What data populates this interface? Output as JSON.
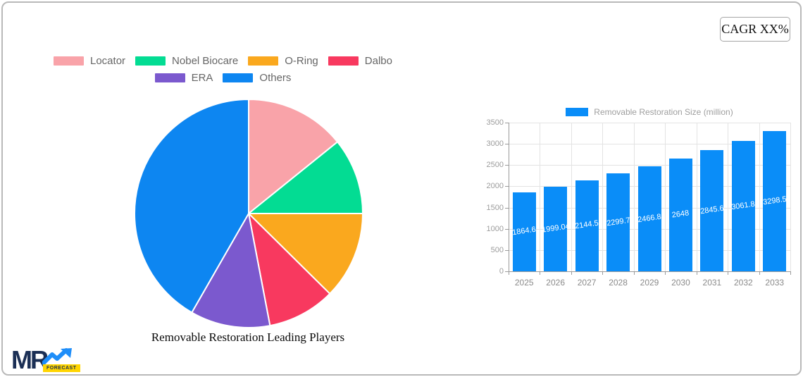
{
  "page": {
    "cagr_label": "CAGR XX%"
  },
  "logo": {
    "text": "MR",
    "badge": "FORECAST"
  },
  "colors": {
    "bar_blue": "#0a8df8",
    "page_border": "#b9b9b9",
    "legend_text": "#666666",
    "axis_text": "#9c9c9c"
  },
  "chart_data": [
    {
      "type": "pie",
      "title": "Removable Restoration Leading Players",
      "legend_position": "top",
      "start_angle_deg": 0,
      "slices": [
        {
          "label": "Locator",
          "value": 14.2,
          "color": "#f9a3a9"
        },
        {
          "label": "Nobel Biocare",
          "value": 10.8,
          "color": "#03dc93"
        },
        {
          "label": "O-Ring",
          "value": 12.4,
          "color": "#faa81e"
        },
        {
          "label": "Dalbo",
          "value": 9.6,
          "color": "#f8395f"
        },
        {
          "label": "ERA",
          "value": 11.3,
          "color": "#7b59ce"
        },
        {
          "label": "Others",
          "value": 41.7,
          "color": "#0d86f1"
        }
      ]
    },
    {
      "type": "bar",
      "series_label": "Removable Restoration Size (million)",
      "categories": [
        "2025",
        "2026",
        "2027",
        "2028",
        "2029",
        "2030",
        "2031",
        "2032",
        "2033"
      ],
      "values": [
        1864.6,
        1999.04,
        2144.5,
        2299.7,
        2466.8,
        2648,
        2845.6,
        3061.8,
        3298.5
      ],
      "labels": [
        "1864.6",
        "1999.04",
        "2144.5",
        "2299.7",
        "2466.8",
        "2648",
        "2845.6",
        "3061.8",
        "3298.5"
      ],
      "ylim": [
        0,
        3500
      ],
      "yticks": [
        0,
        500,
        1000,
        1500,
        2000,
        2500,
        3000,
        3500
      ],
      "bar_color": "#0a8df8",
      "grid": true,
      "legend_position": "top"
    }
  ]
}
